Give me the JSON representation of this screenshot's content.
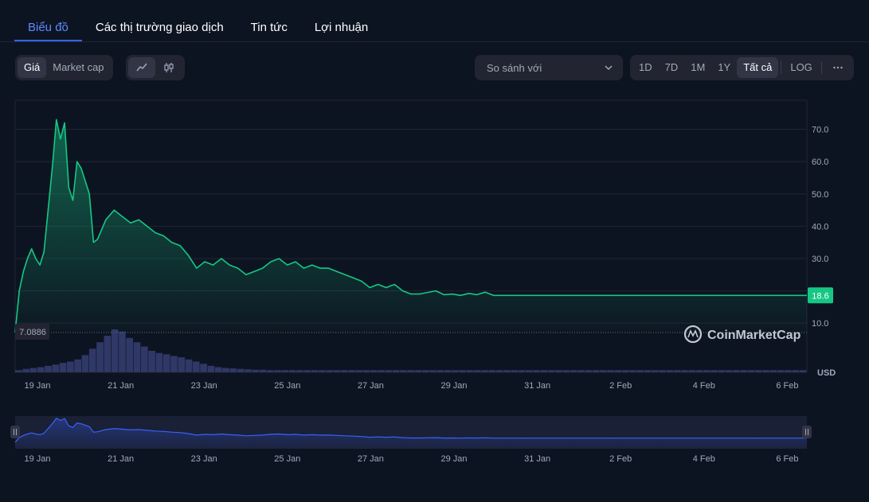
{
  "tabs": [
    {
      "label": "Biểu đồ",
      "active": true
    },
    {
      "label": "Các thị trường giao dịch",
      "active": false
    },
    {
      "label": "Tin tức",
      "active": false
    },
    {
      "label": "Lợi nhuận",
      "active": false
    }
  ],
  "toolbar": {
    "price_label": "Giá",
    "marketcap_label": "Market cap",
    "line_icon": "line-chart-icon",
    "candle_icon": "candlestick-icon",
    "compare_label": "So sánh với",
    "ranges": [
      "1D",
      "7D",
      "1M",
      "1Y",
      "Tất cả"
    ],
    "active_range": "Tất cả",
    "log_label": "LOG",
    "more_icon": "more-icon"
  },
  "colors": {
    "line": "#16c784",
    "volume": "#2f3866",
    "navigator_line": "#3861fb",
    "background": "#0d1421"
  },
  "chart_data": {
    "type": "area",
    "currency": "USD",
    "y_ticks": [
      10.0,
      20.0,
      30.0,
      40.0,
      50.0,
      60.0,
      70.0
    ],
    "ylim": [
      7.0886,
      79
    ],
    "x_ticks": [
      "19 Jan",
      "21 Jan",
      "23 Jan",
      "25 Jan",
      "27 Jan",
      "29 Jan",
      "31 Jan",
      "2 Feb",
      "4 Feb",
      "6 Feb"
    ],
    "current_price": 18.6,
    "current_price_label": "18.6",
    "start_price": 7.0886,
    "start_price_label": "7.0886",
    "watermark": "CoinMarketCap",
    "grid": true,
    "x_days": [
      0,
      0.1,
      0.2,
      0.3,
      0.4,
      0.5,
      0.6,
      0.7,
      0.8,
      0.9,
      1.0,
      1.1,
      1.2,
      1.3,
      1.4,
      1.5,
      1.6,
      1.7,
      1.8,
      1.9,
      2.0,
      2.2,
      2.4,
      2.6,
      2.8,
      3.0,
      3.2,
      3.4,
      3.6,
      3.8,
      4.0,
      4.2,
      4.4,
      4.6,
      4.8,
      5.0,
      5.2,
      5.4,
      5.6,
      5.8,
      6.0,
      6.2,
      6.4,
      6.6,
      6.8,
      7.0,
      7.2,
      7.4,
      7.6,
      7.8,
      8.0,
      8.2,
      8.4,
      8.6,
      8.8,
      9.0,
      9.2,
      9.4,
      9.6,
      9.8,
      10.0,
      10.2,
      10.4,
      10.6,
      10.8,
      11.0,
      11.2,
      11.4,
      11.6,
      11.8,
      12.0,
      12.2,
      12.4,
      12.6,
      12.8,
      13.0,
      13.2,
      13.4,
      13.6,
      13.8,
      14.0,
      14.2,
      14.4,
      14.6,
      14.8,
      15.0,
      15.2,
      15.4,
      15.6,
      15.8,
      16.0,
      16.2,
      16.4,
      16.6,
      16.8,
      17.0,
      17.2,
      17.4,
      17.6,
      17.8,
      18.0,
      18.2,
      18.4,
      18.6,
      18.8,
      19.0,
      19.2
    ],
    "prices": [
      7.1,
      20,
      26,
      30,
      33,
      30,
      28,
      32,
      45,
      58,
      73,
      67,
      72,
      52,
      48,
      60,
      58,
      54,
      50,
      35,
      36,
      42,
      45,
      43,
      41,
      42,
      40,
      38,
      37,
      35,
      34,
      31,
      27,
      29,
      28,
      30,
      28,
      27,
      25,
      26,
      27,
      29,
      30,
      28,
      29,
      27,
      28,
      27,
      27,
      26,
      25,
      24,
      23,
      21,
      22,
      21,
      22,
      20,
      19,
      19,
      19.5,
      20,
      18.8,
      19,
      18.6,
      19.2,
      18.8,
      19.6,
      18.6,
      18.6,
      18.6,
      18.6,
      18.6,
      18.6,
      18.6,
      18.6,
      18.6,
      18.6,
      18.6,
      18.6,
      18.6,
      18.6,
      18.6,
      18.6,
      18.6,
      18.6,
      18.6,
      18.6,
      18.6,
      18.6,
      18.6,
      18.6,
      18.6,
      18.6,
      18.6,
      18.6,
      18.6,
      18.6,
      18.6,
      18.6,
      18.6,
      18.6,
      18.6,
      18.6,
      18.6,
      18.6,
      18.6
    ],
    "volumes": [
      0.05,
      0.08,
      0.1,
      0.12,
      0.15,
      0.18,
      0.22,
      0.25,
      0.3,
      0.4,
      0.55,
      0.7,
      0.85,
      1.0,
      0.95,
      0.8,
      0.7,
      0.6,
      0.5,
      0.45,
      0.42,
      0.38,
      0.35,
      0.3,
      0.25,
      0.2,
      0.15,
      0.12,
      0.1,
      0.09,
      0.08,
      0.07,
      0.06,
      0.06,
      0.05,
      0.05,
      0.05,
      0.05,
      0.05,
      0.05,
      0.05,
      0.05,
      0.05,
      0.05,
      0.05,
      0.05,
      0.05,
      0.05,
      0.05,
      0.05,
      0.05,
      0.05,
      0.05,
      0.05,
      0.05,
      0.05,
      0.05,
      0.05,
      0.05,
      0.05,
      0.05,
      0.05,
      0.05,
      0.05,
      0.05,
      0.05,
      0.05,
      0.05,
      0.05,
      0.05,
      0.05,
      0.05,
      0.05,
      0.05,
      0.05,
      0.05,
      0.05,
      0.05,
      0.05,
      0.05,
      0.05,
      0.05,
      0.05,
      0.05,
      0.05,
      0.05,
      0.05,
      0.05,
      0.05,
      0.05,
      0.05,
      0.05,
      0.05,
      0.05,
      0.05,
      0.05,
      0.05,
      0.05,
      0.05,
      0.05,
      0.05,
      0.05,
      0.05,
      0.05,
      0.05,
      0.05,
      0.05
    ]
  }
}
